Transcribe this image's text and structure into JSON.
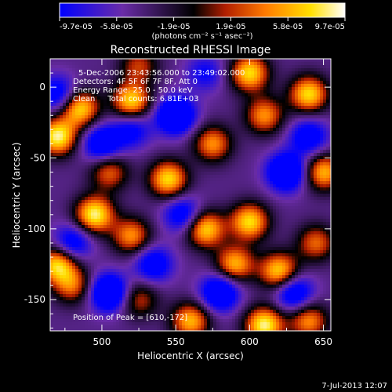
{
  "chart_data": {
    "type": "heatmap",
    "title": "Reconstructed RHESSI Image",
    "xlabel": "Heliocentric X (arcsec)",
    "ylabel": "Heliocentric Y (arcsec)",
    "xlim": [
      465,
      655
    ],
    "ylim": [
      -172,
      20
    ],
    "x_ticks": [
      500,
      550,
      600,
      650
    ],
    "y_ticks": [
      0,
      -50,
      -100,
      -150
    ],
    "colorbar": {
      "min": -9.7e-05,
      "max": 9.7e-05,
      "tick_labels": [
        "-9.7e-05",
        "-5.8e-05",
        "-1.9e-05",
        "1.9e-05",
        "5.8e-05",
        "9.7e-05"
      ],
      "units_label": "(photons cm⁻² s⁻¹ asec⁻²)",
      "colors": [
        "#0000ff",
        "#6a2ca8",
        "#000000",
        "#b01e00",
        "#ff7a00",
        "#ffe000",
        "#ffffff"
      ]
    },
    "annotations": [
      "5-Dec-2006 23:43:56.000 to 23:49:02.000",
      "Detectors: 4F 5F 6F 7F 8F, Att 0",
      "Energy Range: 25.0 - 50.0 keV",
      "Clean     Total counts: 6.81E+03",
      "Position of Peak = [610,-172]"
    ],
    "peak": [
      610,
      -172
    ],
    "blobs": [
      {
        "x": 470,
        "y": -35,
        "v": 1.0
      },
      {
        "x": 485,
        "y": -15,
        "v": 0.9
      },
      {
        "x": 520,
        "y": -10,
        "v": 0.9
      },
      {
        "x": 525,
        "y": 15,
        "v": 0.5
      },
      {
        "x": 600,
        "y": 10,
        "v": 0.9
      },
      {
        "x": 610,
        "y": -20,
        "v": 0.7
      },
      {
        "x": 640,
        "y": -5,
        "v": 0.9
      },
      {
        "x": 650,
        "y": -60,
        "v": 0.8
      },
      {
        "x": 575,
        "y": -40,
        "v": 0.7
      },
      {
        "x": 545,
        "y": -65,
        "v": 0.9
      },
      {
        "x": 505,
        "y": -60,
        "v": 0.6
      },
      {
        "x": 495,
        "y": -90,
        "v": 1.0
      },
      {
        "x": 520,
        "y": -105,
        "v": 0.7
      },
      {
        "x": 470,
        "y": -125,
        "v": 0.9
      },
      {
        "x": 480,
        "y": -140,
        "v": 0.6
      },
      {
        "x": 570,
        "y": -100,
        "v": 0.9
      },
      {
        "x": 600,
        "y": -95,
        "v": 0.9
      },
      {
        "x": 590,
        "y": -125,
        "v": 0.8
      },
      {
        "x": 620,
        "y": -130,
        "v": 0.9
      },
      {
        "x": 645,
        "y": -110,
        "v": 0.6
      },
      {
        "x": 560,
        "y": -165,
        "v": 0.8
      },
      {
        "x": 610,
        "y": -168,
        "v": 1.0
      },
      {
        "x": 640,
        "y": -165,
        "v": 0.7
      },
      {
        "x": 525,
        "y": -150,
        "v": 0.5
      },
      {
        "x": 500,
        "y": -40,
        "v": -0.7
      },
      {
        "x": 550,
        "y": -20,
        "v": -0.9
      },
      {
        "x": 555,
        "y": -90,
        "v": -0.6
      },
      {
        "x": 505,
        "y": -145,
        "v": -0.9
      },
      {
        "x": 535,
        "y": -125,
        "v": -0.6
      },
      {
        "x": 625,
        "y": -60,
        "v": -0.9
      },
      {
        "x": 630,
        "y": -145,
        "v": -0.7
      },
      {
        "x": 470,
        "y": -5,
        "v": -0.6
      },
      {
        "x": 570,
        "y": 10,
        "v": -0.4
      },
      {
        "x": 640,
        "y": -35,
        "v": -0.6
      },
      {
        "x": 580,
        "y": -145,
        "v": -0.8
      },
      {
        "x": 480,
        "y": -110,
        "v": -0.6
      },
      {
        "x": 520,
        "y": -30,
        "v": -0.5
      }
    ]
  },
  "footer": {
    "timestamp": "7-Jul-2013 12:07"
  }
}
